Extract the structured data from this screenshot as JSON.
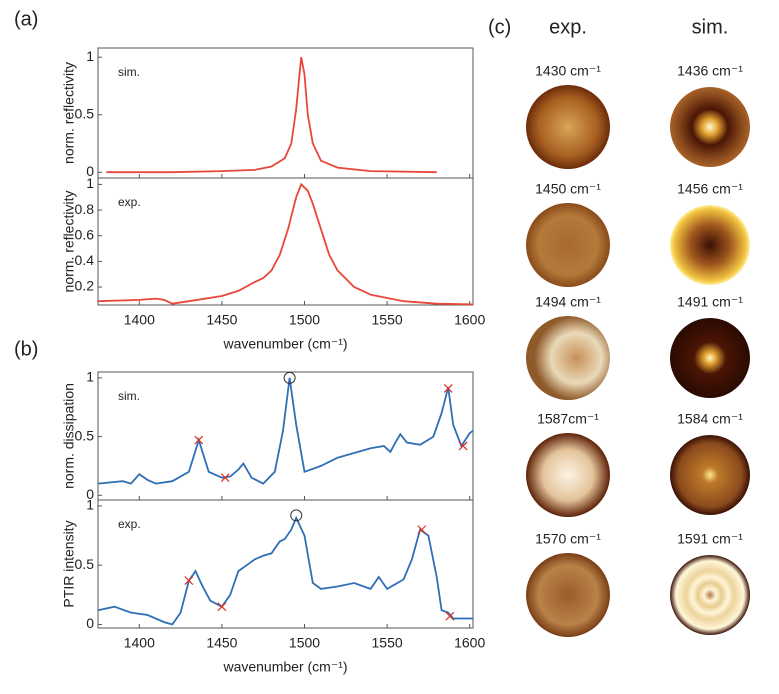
{
  "panel_labels": [
    "(a)",
    "(b)",
    "(c)"
  ],
  "chart_data": [
    {
      "type": "line",
      "annotation": "sim.",
      "ylabel": "norm. reflectivity",
      "xlim": [
        1375,
        1602
      ],
      "xticks": [
        1400,
        1450,
        1500,
        1550,
        1600
      ],
      "ylim": [
        -0.05,
        1.08
      ],
      "yticks": [
        0,
        0.5,
        1
      ],
      "series": [
        {
          "color": "#e8473a",
          "x": [
            1380,
            1420,
            1450,
            1470,
            1480,
            1488,
            1492,
            1495,
            1497,
            1498,
            1500,
            1502,
            1505,
            1510,
            1520,
            1540,
            1580
          ],
          "values": [
            0,
            0,
            0.01,
            0.02,
            0.05,
            0.12,
            0.25,
            0.55,
            0.85,
            1.0,
            0.85,
            0.5,
            0.25,
            0.1,
            0.04,
            0.01,
            0
          ]
        }
      ]
    },
    {
      "type": "line",
      "annotation": "exp.",
      "ylabel": "norm. reflectivity",
      "xlabel": "wavenumber (cm⁻¹)",
      "xlim": [
        1375,
        1602
      ],
      "xticks": [
        1400,
        1450,
        1500,
        1550,
        1600
      ],
      "ylim": [
        0.06,
        1.05
      ],
      "yticks": [
        0.2,
        0.4,
        0.6,
        0.8,
        1
      ],
      "series": [
        {
          "color": "#e8473a",
          "x": [
            1375,
            1400,
            1410,
            1415,
            1420,
            1430,
            1450,
            1460,
            1470,
            1475,
            1480,
            1485,
            1490,
            1495,
            1498,
            1502,
            1505,
            1510,
            1515,
            1520,
            1530,
            1540,
            1560,
            1580,
            1602
          ],
          "values": [
            0.09,
            0.1,
            0.11,
            0.1,
            0.07,
            0.09,
            0.13,
            0.17,
            0.24,
            0.27,
            0.33,
            0.45,
            0.65,
            0.9,
            1.0,
            0.95,
            0.85,
            0.65,
            0.45,
            0.33,
            0.2,
            0.14,
            0.09,
            0.07,
            0.065
          ]
        }
      ]
    },
    {
      "type": "line",
      "annotation": "sim.",
      "ylabel": "norm. dissipation",
      "xlim": [
        1375,
        1602
      ],
      "xticks": [
        1400,
        1450,
        1500,
        1550,
        1600
      ],
      "ylim": [
        -0.04,
        1.05
      ],
      "yticks": [
        0,
        0.5,
        1
      ],
      "series": [
        {
          "color": "#2f6fb5",
          "x": [
            1375,
            1390,
            1395,
            1400,
            1405,
            1410,
            1420,
            1430,
            1436,
            1442,
            1450,
            1455,
            1460,
            1463,
            1468,
            1475,
            1482,
            1487,
            1491,
            1495,
            1500,
            1510,
            1520,
            1530,
            1540,
            1548,
            1552,
            1555,
            1558,
            1562,
            1570,
            1578,
            1583,
            1587,
            1590,
            1595,
            1600,
            1602
          ],
          "values": [
            0.1,
            0.12,
            0.1,
            0.18,
            0.13,
            0.1,
            0.12,
            0.2,
            0.47,
            0.2,
            0.15,
            0.16,
            0.22,
            0.27,
            0.15,
            0.1,
            0.2,
            0.55,
            1.0,
            0.6,
            0.2,
            0.25,
            0.32,
            0.36,
            0.4,
            0.42,
            0.37,
            0.45,
            0.52,
            0.45,
            0.43,
            0.5,
            0.7,
            0.92,
            0.6,
            0.42,
            0.53,
            0.55
          ]
        }
      ],
      "markers": [
        {
          "x": 1436,
          "y": 0.47,
          "shape": "x"
        },
        {
          "x": 1452,
          "y": 0.15,
          "shape": "x"
        },
        {
          "x": 1587,
          "y": 0.91,
          "shape": "x"
        },
        {
          "x": 1596,
          "y": 0.42,
          "shape": "x"
        },
        {
          "x": 1491,
          "y": 1.0,
          "shape": "circle"
        }
      ]
    },
    {
      "type": "line",
      "annotation": "exp.",
      "ylabel": "PTIR intensity",
      "xlabel": "wavenumber (cm⁻¹)",
      "xlim": [
        1375,
        1602
      ],
      "xticks": [
        1400,
        1450,
        1500,
        1550,
        1600
      ],
      "ylim": [
        -0.03,
        1.05
      ],
      "yticks": [
        0,
        0.5,
        1
      ],
      "series": [
        {
          "color": "#2f6fb5",
          "x": [
            1375,
            1385,
            1395,
            1405,
            1415,
            1420,
            1425,
            1430,
            1434,
            1438,
            1443,
            1450,
            1455,
            1460,
            1465,
            1470,
            1475,
            1480,
            1485,
            1488,
            1492,
            1495,
            1500,
            1505,
            1510,
            1520,
            1530,
            1540,
            1545,
            1550,
            1560,
            1565,
            1570,
            1575,
            1580,
            1583,
            1587,
            1590,
            1595,
            1602
          ],
          "values": [
            0.12,
            0.15,
            0.1,
            0.08,
            0.02,
            0,
            0.1,
            0.37,
            0.45,
            0.33,
            0.2,
            0.15,
            0.25,
            0.45,
            0.5,
            0.55,
            0.58,
            0.6,
            0.7,
            0.72,
            0.8,
            0.9,
            0.75,
            0.35,
            0.3,
            0.32,
            0.35,
            0.3,
            0.4,
            0.3,
            0.38,
            0.55,
            0.8,
            0.75,
            0.4,
            0.12,
            0.1,
            0.05,
            0.05,
            0.05
          ]
        }
      ],
      "markers": [
        {
          "x": 1430,
          "y": 0.37,
          "shape": "x"
        },
        {
          "x": 1450,
          "y": 0.15,
          "shape": "x"
        },
        {
          "x": 1571,
          "y": 0.8,
          "shape": "x"
        },
        {
          "x": 1588,
          "y": 0.07,
          "shape": "x"
        },
        {
          "x": 1495,
          "y": 0.92,
          "shape": "circle"
        }
      ]
    }
  ],
  "images": {
    "headers": [
      "exp.",
      "sim."
    ],
    "exp": [
      "1430 cm⁻¹",
      "1450 cm⁻¹",
      "1494 cm⁻¹",
      "1587cm⁻¹",
      "1570 cm⁻¹"
    ],
    "sim": [
      "1436 cm⁻¹",
      "1456 cm⁻¹",
      "1491 cm⁻¹",
      "1584 cm⁻¹",
      "1591 cm⁻¹"
    ]
  }
}
